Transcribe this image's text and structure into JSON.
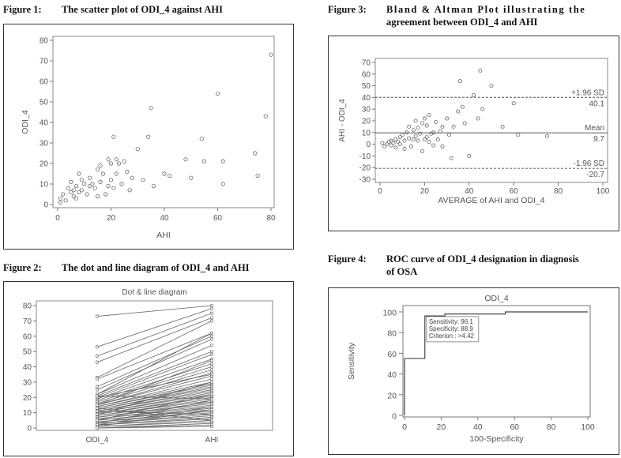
{
  "figures": {
    "fig1": {
      "label": "Figure 1:",
      "text": "The scatter plot of ODI_4 against AHI"
    },
    "fig2": {
      "label": "Figure 2:",
      "text": "The dot and line diagram of ODI_4 and AHI"
    },
    "fig3": {
      "label": "Figure 3:",
      "text_line1": "Bland & Altman Plot illustrating the",
      "text_line2": "agreement between ODI_4 and AHI"
    },
    "fig4": {
      "label": "Figure 4:",
      "text_line1": "ROC curve of ODI_4 designation in diagnosis",
      "text_line2": "of OSA"
    }
  },
  "chart_data": [
    {
      "id": "scatter",
      "type": "scatter",
      "xlabel": "AHI",
      "ylabel": "ODI_4",
      "xlim": [
        0,
        80
      ],
      "ylim": [
        0,
        80
      ],
      "xticks": [
        0,
        20,
        40,
        60,
        80
      ],
      "yticks": [
        0,
        10,
        20,
        30,
        40,
        50,
        60,
        70,
        80
      ],
      "points": [
        [
          1,
          3
        ],
        [
          1,
          1
        ],
        [
          2,
          5
        ],
        [
          3,
          2
        ],
        [
          4,
          8
        ],
        [
          5,
          6
        ],
        [
          5,
          11
        ],
        [
          6,
          4
        ],
        [
          6,
          7
        ],
        [
          7,
          9
        ],
        [
          7,
          3
        ],
        [
          8,
          6
        ],
        [
          8,
          15
        ],
        [
          9,
          7
        ],
        [
          9,
          12
        ],
        [
          10,
          10
        ],
        [
          11,
          5
        ],
        [
          12,
          9
        ],
        [
          12,
          13
        ],
        [
          13,
          10
        ],
        [
          14,
          8
        ],
        [
          15,
          4
        ],
        [
          15,
          17
        ],
        [
          16,
          11
        ],
        [
          16,
          19
        ],
        [
          17,
          15
        ],
        [
          18,
          5
        ],
        [
          19,
          9
        ],
        [
          19,
          22
        ],
        [
          20,
          20
        ],
        [
          20,
          12
        ],
        [
          21,
          33
        ],
        [
          21,
          8
        ],
        [
          22,
          15
        ],
        [
          22,
          22
        ],
        [
          23,
          20
        ],
        [
          24,
          10
        ],
        [
          25,
          21
        ],
        [
          26,
          16
        ],
        [
          27,
          7
        ],
        [
          28,
          13
        ],
        [
          30,
          27
        ],
        [
          32,
          12
        ],
        [
          34,
          33
        ],
        [
          35,
          47
        ],
        [
          36,
          9
        ],
        [
          40,
          15
        ],
        [
          42,
          14
        ],
        [
          48,
          22
        ],
        [
          50,
          13
        ],
        [
          54,
          32
        ],
        [
          55,
          21
        ],
        [
          60,
          54
        ],
        [
          62,
          21
        ],
        [
          62,
          10
        ],
        [
          74,
          25
        ],
        [
          75,
          14
        ],
        [
          78,
          43
        ],
        [
          80,
          73
        ]
      ]
    },
    {
      "id": "dotline",
      "type": "line",
      "title": "Dot & line diagram",
      "categories": [
        "ODI_4",
        "AHI"
      ],
      "ylim": [
        0,
        80
      ],
      "yticks": [
        0,
        10,
        20,
        30,
        40,
        50,
        60,
        70,
        80
      ],
      "pairs": [
        [
          73,
          80
        ],
        [
          53,
          78
        ],
        [
          47,
          75
        ],
        [
          43,
          72
        ],
        [
          33,
          70
        ],
        [
          32,
          62
        ],
        [
          27,
          60
        ],
        [
          25,
          58
        ],
        [
          22,
          54
        ],
        [
          21,
          50
        ],
        [
          20,
          48
        ],
        [
          19,
          45
        ],
        [
          18,
          42
        ],
        [
          17,
          40
        ],
        [
          16,
          38
        ],
        [
          15,
          36
        ],
        [
          15,
          34
        ],
        [
          14,
          32
        ],
        [
          14,
          30
        ],
        [
          13,
          29
        ],
        [
          13,
          28
        ],
        [
          12,
          27
        ],
        [
          12,
          26
        ],
        [
          11,
          25
        ],
        [
          11,
          24
        ],
        [
          10,
          23
        ],
        [
          10,
          22
        ],
        [
          9,
          21
        ],
        [
          9,
          20
        ],
        [
          8,
          19
        ],
        [
          8,
          18
        ],
        [
          7,
          17
        ],
        [
          7,
          16
        ],
        [
          6,
          15
        ],
        [
          6,
          14
        ],
        [
          5,
          13
        ],
        [
          5,
          12
        ],
        [
          4,
          11
        ],
        [
          4,
          10
        ],
        [
          3,
          9
        ],
        [
          3,
          8
        ],
        [
          2,
          7
        ],
        [
          2,
          6
        ],
        [
          1,
          5
        ],
        [
          1,
          4
        ],
        [
          0,
          3
        ],
        [
          0,
          2
        ],
        [
          22,
          62
        ],
        [
          20,
          35
        ],
        [
          15,
          44
        ],
        [
          9,
          30
        ],
        [
          5,
          22
        ],
        [
          3,
          18
        ],
        [
          2,
          14
        ],
        [
          1,
          12
        ],
        [
          0,
          1
        ],
        [
          11,
          9
        ],
        [
          21,
          19
        ],
        [
          13,
          5
        ]
      ]
    },
    {
      "id": "blandaltman",
      "type": "scatter",
      "xlabel": "AVERAGE of AHI and ODI_4",
      "ylabel": "AHI - ODI_4",
      "xlim": [
        0,
        100
      ],
      "ylim": [
        -30,
        70
      ],
      "xticks": [
        0,
        20,
        40,
        60,
        80,
        100
      ],
      "yticks": [
        -30,
        -20,
        -10,
        0,
        10,
        20,
        30,
        40,
        50,
        60,
        70
      ],
      "reference_lines": [
        {
          "label": "+1.96 SD",
          "value_text": "40.1",
          "value": 40.1,
          "style": "dashed"
        },
        {
          "label": "Mean",
          "value_text": "9.7",
          "value": 9.7,
          "style": "solid"
        },
        {
          "label": "-1.96 SD",
          "value_text": "-20.7",
          "value": -20.7,
          "style": "dashed"
        }
      ],
      "points": [
        [
          1,
          1
        ],
        [
          2,
          -2
        ],
        [
          3,
          0
        ],
        [
          4,
          2
        ],
        [
          5,
          -1
        ],
        [
          5,
          3
        ],
        [
          6,
          1
        ],
        [
          7,
          4
        ],
        [
          7,
          -3
        ],
        [
          8,
          2
        ],
        [
          9,
          6
        ],
        [
          9,
          0
        ],
        [
          10,
          8
        ],
        [
          11,
          -4
        ],
        [
          11,
          3
        ],
        [
          12,
          10
        ],
        [
          13,
          5
        ],
        [
          13,
          15
        ],
        [
          14,
          -2
        ],
        [
          15,
          12
        ],
        [
          15,
          4
        ],
        [
          16,
          20
        ],
        [
          16,
          7
        ],
        [
          17,
          14
        ],
        [
          17,
          3
        ],
        [
          18,
          9
        ],
        [
          19,
          18
        ],
        [
          19,
          -6
        ],
        [
          20,
          22
        ],
        [
          20,
          4
        ],
        [
          21,
          16
        ],
        [
          21,
          6
        ],
        [
          22,
          25
        ],
        [
          22,
          2
        ],
        [
          23,
          9
        ],
        [
          24,
          10
        ],
        [
          24,
          -1
        ],
        [
          25,
          19
        ],
        [
          26,
          4
        ],
        [
          27,
          11
        ],
        [
          28,
          -2
        ],
        [
          28,
          15
        ],
        [
          30,
          22
        ],
        [
          31,
          8
        ],
        [
          32,
          -12
        ],
        [
          33,
          15
        ],
        [
          35,
          28
        ],
        [
          36,
          54
        ],
        [
          37,
          32
        ],
        [
          38,
          18
        ],
        [
          40,
          -10
        ],
        [
          42,
          42
        ],
        [
          44,
          22
        ],
        [
          45,
          63
        ],
        [
          46,
          30
        ],
        [
          50,
          50
        ],
        [
          55,
          15
        ],
        [
          60,
          35
        ],
        [
          62,
          8
        ],
        [
          75,
          7
        ]
      ]
    },
    {
      "id": "roc",
      "type": "line",
      "title": "ODI_4",
      "xlabel": "100-Specificity",
      "ylabel": "Sensitivity",
      "xlim": [
        0,
        100
      ],
      "ylim": [
        0,
        100
      ],
      "xticks": [
        0,
        20,
        40,
        60,
        80,
        100
      ],
      "yticks": [
        0,
        20,
        40,
        60,
        80,
        100
      ],
      "points": [
        [
          0,
          0
        ],
        [
          0,
          55
        ],
        [
          11.1,
          55
        ],
        [
          11.1,
          96.1
        ],
        [
          22,
          96.1
        ],
        [
          22,
          98
        ],
        [
          55,
          98
        ],
        [
          55,
          100
        ],
        [
          100,
          100
        ]
      ],
      "annotation": [
        "Sensitivity: 96.1",
        "Specificity: 88.9",
        "Criterion : >4.42"
      ]
    }
  ]
}
